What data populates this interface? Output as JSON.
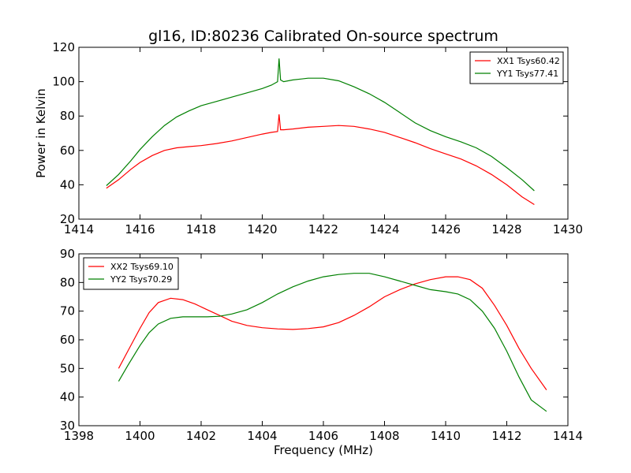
{
  "figure": {
    "title": "gl16, ID:80236 Calibrated On-source spectrum"
  },
  "chart_data": [
    {
      "type": "line",
      "title": "gl16, ID:80236 Calibrated On-source spectrum",
      "xlabel": "",
      "ylabel": "Power in Kelvin",
      "xlim": [
        1414,
        1430
      ],
      "ylim": [
        20,
        120
      ],
      "xticks": [
        "1414",
        "1416",
        "1418",
        "1420",
        "1422",
        "1424",
        "1426",
        "1428",
        "1430"
      ],
      "yticks": [
        "20",
        "40",
        "60",
        "80",
        "100",
        "120"
      ],
      "legend_position": "top-right",
      "series": [
        {
          "name": "XX1 Tsys60.42",
          "color": "#ff0000",
          "x": [
            1414.9,
            1415.3,
            1415.7,
            1416.0,
            1416.4,
            1416.8,
            1417.2,
            1417.6,
            1418.0,
            1418.5,
            1419.0,
            1419.5,
            1420.0,
            1420.3,
            1420.5,
            1420.55,
            1420.6,
            1420.7,
            1421.0,
            1421.5,
            1422.0,
            1422.5,
            1423.0,
            1423.5,
            1424.0,
            1424.5,
            1425.0,
            1425.5,
            1426.0,
            1426.5,
            1427.0,
            1427.5,
            1428.0,
            1428.5,
            1428.9
          ],
          "values": [
            38,
            43,
            49,
            53,
            57,
            60,
            61.5,
            62.2,
            62.8,
            64,
            65.5,
            67.5,
            69.5,
            70.5,
            71,
            81,
            72,
            72,
            72.5,
            73.5,
            74,
            74.5,
            74,
            72.5,
            70.5,
            67.5,
            64.5,
            61,
            58,
            55,
            51,
            46,
            40,
            33,
            28.5
          ]
        },
        {
          "name": "YY1 Tsys77.41",
          "color": "#008000",
          "x": [
            1414.9,
            1415.3,
            1415.7,
            1416.0,
            1416.4,
            1416.8,
            1417.2,
            1417.6,
            1418.0,
            1418.5,
            1419.0,
            1419.5,
            1420.0,
            1420.3,
            1420.5,
            1420.55,
            1420.6,
            1420.7,
            1421.0,
            1421.5,
            1422.0,
            1422.5,
            1423.0,
            1423.5,
            1424.0,
            1424.5,
            1425.0,
            1425.5,
            1426.0,
            1426.5,
            1427.0,
            1427.5,
            1428.0,
            1428.5,
            1428.9
          ],
          "values": [
            39.5,
            46,
            54,
            60.5,
            68,
            74.5,
            79.5,
            83,
            86,
            88.5,
            91,
            93.5,
            96,
            98,
            100,
            113.5,
            101,
            100,
            101,
            102,
            102,
            100.5,
            97,
            93,
            88,
            82,
            76,
            71.5,
            68,
            65,
            61.5,
            56.5,
            50,
            43,
            36.5
          ]
        }
      ]
    },
    {
      "type": "line",
      "title": "",
      "xlabel": "Frequency (MHz)",
      "ylabel": "",
      "xlim": [
        1398,
        1414
      ],
      "ylim": [
        30,
        90
      ],
      "xticks": [
        "1398",
        "1400",
        "1402",
        "1404",
        "1406",
        "1408",
        "1410",
        "1412",
        "1414"
      ],
      "yticks": [
        "30",
        "40",
        "50",
        "60",
        "70",
        "80",
        "90"
      ],
      "legend_position": "top-left",
      "series": [
        {
          "name": "XX2 Tsys69.10",
          "color": "#ff0000",
          "x": [
            1399.3,
            1399.6,
            1400.0,
            1400.3,
            1400.6,
            1401.0,
            1401.4,
            1401.8,
            1402.2,
            1402.6,
            1403.0,
            1403.5,
            1404.0,
            1404.5,
            1405.0,
            1405.5,
            1406.0,
            1406.5,
            1407.0,
            1407.5,
            1408.0,
            1408.5,
            1409.0,
            1409.5,
            1410.0,
            1410.4,
            1410.8,
            1411.2,
            1411.6,
            1412.0,
            1412.4,
            1412.8,
            1413.3
          ],
          "values": [
            50,
            56,
            64,
            69.5,
            73,
            74.5,
            74,
            72.5,
            70.5,
            68.5,
            66.5,
            65,
            64.2,
            63.8,
            63.6,
            63.9,
            64.5,
            66,
            68.5,
            71.5,
            75,
            77.5,
            79.5,
            81,
            82,
            82,
            81,
            78,
            72,
            65,
            57,
            50,
            42.5
          ]
        },
        {
          "name": "YY2 Tsys70.29",
          "color": "#008000",
          "x": [
            1399.3,
            1399.6,
            1400.0,
            1400.3,
            1400.6,
            1401.0,
            1401.4,
            1401.8,
            1402.2,
            1402.6,
            1403.0,
            1403.5,
            1404.0,
            1404.5,
            1405.0,
            1405.5,
            1406.0,
            1406.5,
            1407.0,
            1407.5,
            1408.0,
            1408.5,
            1409.0,
            1409.5,
            1410.0,
            1410.4,
            1410.8,
            1411.2,
            1411.6,
            1412.0,
            1412.4,
            1412.8,
            1413.3
          ],
          "values": [
            45.5,
            51,
            58,
            62.5,
            65.5,
            67.5,
            68,
            68,
            68,
            68.2,
            69,
            70.5,
            73,
            76,
            78.5,
            80.5,
            82,
            82.8,
            83.2,
            83.2,
            82,
            80.5,
            79,
            77.5,
            76.8,
            76,
            74,
            70,
            64,
            56,
            47,
            39,
            35
          ]
        }
      ]
    }
  ]
}
